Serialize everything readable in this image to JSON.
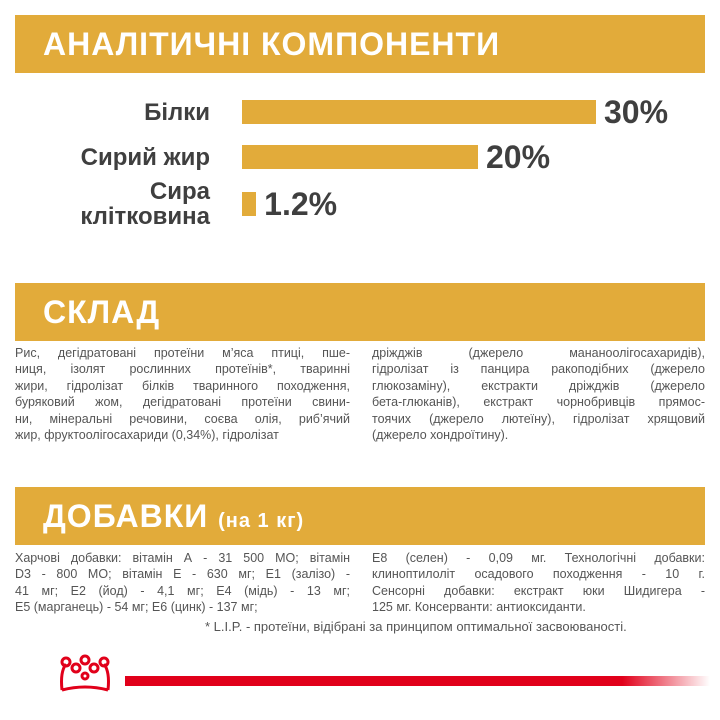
{
  "analysis": {
    "title": "АНАЛІТИЧНІ КОМПОНЕНТИ",
    "items": [
      {
        "label": [
          "Білки"
        ],
        "value": 30,
        "value_label": "30%"
      },
      {
        "label": [
          "Сирий жир"
        ],
        "value": 20,
        "value_label": "20%"
      },
      {
        "label": [
          "Сира",
          "клітковина"
        ],
        "value": 1.2,
        "value_label": "1.2%"
      }
    ]
  },
  "composition": {
    "title": "СКЛАД",
    "columns": [
      [
        "Рис, дегідратовані протеїни м’яса птиці, пше-",
        "ниця, ізолят рослинних протеїнів*, тваринні",
        "жири, гідролізат білків тваринного походження,",
        "буряковий жом, дегідратовані протеїни свини-",
        "ни, мінеральні речовини, соєва олія, риб’ячий",
        "жир, фруктоолігосахариди (0,34%), гідролізат"
      ],
      [
        "дріжджів (джерело мананоолігосахаридів),",
        "гідролізат із панцира ракоподібних (джерело",
        "глюкозаміну), екстракти дріжджів (джерело",
        "бета-глюканів), екстракт чорнобривців прямос-",
        "тоячих (джерело лютеїну), гідролізат хрящовий",
        "(джерело хондроїтину)."
      ]
    ]
  },
  "additives": {
    "title": "ДОБАВКИ",
    "subtitle": "(на 1 кг)",
    "columns": [
      [
        "Харчові добавки: вітамін А - 31 500 МО; вітамін",
        "D3 - 800 МО; вітамін Е - 630 мг; Е1 (залізо) -",
        "41 мг; Е2 (йод) - 4,1 мг; Е4 (мідь) - 13 мг;",
        "Е5 (марганець) - 54 мг; Е6 (цинк) - 137 мг;"
      ],
      [
        "Е8 (селен) - 0,09 мг. Технологічні добавки:",
        "клиноптилоліт осадового походження - 10 г.",
        "Сенсорні добавки: екстракт юки Шидигера -",
        "125 мг. Консерванти: антиоксиданти."
      ]
    ]
  },
  "footnote": "* L.I.P. - протеїни, відібрані за принципом оптимальної засвоюваності."
}
